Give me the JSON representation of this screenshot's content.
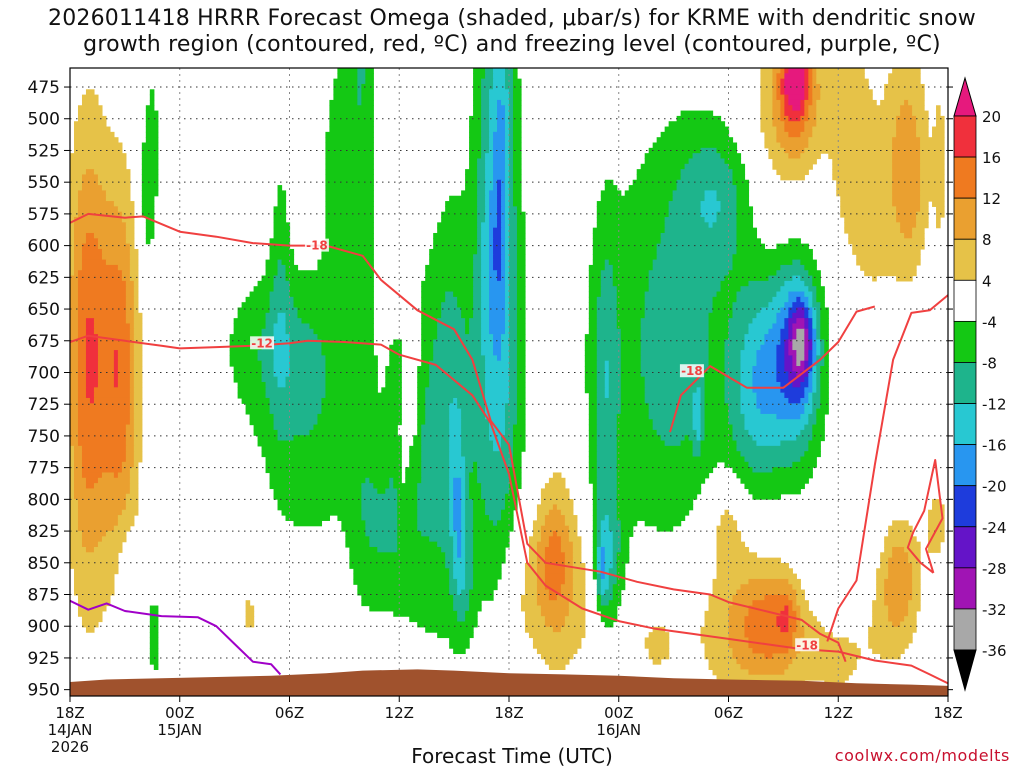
{
  "chart_data": {
    "type": "heatmap",
    "title_line1": "2026011418 HRRR Forecast Omega (shaded, μbar/s) for KRME with dendritic snow",
    "title_line2": "growth region (contoured, red, ºC) and freezing level (contoured, purple, ºC)",
    "xlabel": "Forecast Time (UTC)",
    "credit": "coolwx.com/modelts",
    "x_range_hours": [
      0,
      48
    ],
    "y_range_hpa": [
      460,
      955
    ],
    "y_ticks": [
      475,
      500,
      525,
      550,
      575,
      600,
      625,
      650,
      675,
      700,
      725,
      750,
      775,
      800,
      825,
      850,
      875,
      900,
      925,
      950
    ],
    "x_ticks": [
      {
        "hour": 0,
        "label": "18Z",
        "date": "14JAN",
        "year": "2026"
      },
      {
        "hour": 6,
        "label": "00Z",
        "date": "15JAN",
        "year": ""
      },
      {
        "hour": 12,
        "label": "06Z",
        "date": "",
        "year": ""
      },
      {
        "hour": 18,
        "label": "12Z",
        "date": "",
        "year": ""
      },
      {
        "hour": 24,
        "label": "18Z",
        "date": "",
        "year": ""
      },
      {
        "hour": 30,
        "label": "00Z",
        "date": "16JAN",
        "year": ""
      },
      {
        "hour": 36,
        "label": "06Z",
        "date": "",
        "year": ""
      },
      {
        "hour": 42,
        "label": "12Z",
        "date": "",
        "year": ""
      },
      {
        "hour": 48,
        "label": "18Z",
        "date": "",
        "year": ""
      }
    ],
    "colorbar": {
      "levels": [
        20,
        16,
        12,
        8,
        4,
        -4,
        -8,
        -12,
        -16,
        -20,
        -24,
        -28,
        -32,
        -36
      ],
      "bands": [
        {
          "from": 16,
          "to": 20,
          "color": "#f0303c"
        },
        {
          "from": 12,
          "to": 16,
          "color": "#ef7a20"
        },
        {
          "from": 8,
          "to": 12,
          "color": "#eaa030"
        },
        {
          "from": 4,
          "to": 8,
          "color": "#e6c248"
        },
        {
          "from": -4,
          "to": 4,
          "color": "#ffffff"
        },
        {
          "from": -8,
          "to": -4,
          "color": "#14c814"
        },
        {
          "from": -12,
          "to": -8,
          "color": "#1eb48c"
        },
        {
          "from": -16,
          "to": -12,
          "color": "#28c8d2"
        },
        {
          "from": -20,
          "to": -16,
          "color": "#2896f0"
        },
        {
          "from": -24,
          "to": -20,
          "color": "#1e3cdc"
        },
        {
          "from": -28,
          "to": -24,
          "color": "#6414c8"
        },
        {
          "from": -32,
          "to": -28,
          "color": "#a014b4"
        },
        {
          "from": -36,
          "to": -32,
          "color": "#a8a8a8"
        }
      ],
      "top_arrow_color": "#e6197d",
      "bottom_arrow_color": "#000000"
    },
    "colors": {
      "terrain": "#a0522d",
      "dgz_contour": "#f04040",
      "freezing_contour": "#a000c8"
    },
    "contour_labels": [
      {
        "text": "-18",
        "hour": 13.5,
        "p": 600
      },
      {
        "text": "-12",
        "hour": 10.5,
        "p": 677
      },
      {
        "text": "-18",
        "hour": 34.0,
        "p": 699
      },
      {
        "text": "-18",
        "hour": 40.3,
        "p": 915
      }
    ],
    "dgz_minus12": [
      [
        0,
        676
      ],
      [
        1,
        671
      ],
      [
        2,
        673
      ],
      [
        3,
        675
      ],
      [
        5,
        679
      ],
      [
        6,
        681
      ],
      [
        8,
        680
      ],
      [
        10,
        679
      ],
      [
        12,
        677
      ],
      [
        13,
        675
      ],
      [
        15,
        676
      ],
      [
        17,
        678
      ],
      [
        18,
        686
      ],
      [
        20,
        694
      ],
      [
        22,
        718
      ],
      [
        23,
        740
      ],
      [
        24,
        780
      ],
      [
        25,
        850
      ],
      [
        26,
        868
      ],
      [
        28,
        886
      ],
      [
        30,
        896
      ],
      [
        32,
        902
      ],
      [
        34,
        906
      ],
      [
        36,
        910
      ],
      [
        38,
        914
      ],
      [
        40,
        918
      ],
      [
        42,
        920
      ],
      [
        44,
        927
      ],
      [
        46,
        931
      ],
      [
        47,
        938
      ],
      [
        48,
        945
      ]
    ],
    "dgz_minus18": [
      [
        0,
        582
      ],
      [
        1,
        575
      ],
      [
        3,
        578
      ],
      [
        4,
        577
      ],
      [
        6,
        589
      ],
      [
        8,
        593
      ],
      [
        10,
        598
      ],
      [
        12,
        600
      ],
      [
        14,
        600
      ],
      [
        16,
        608
      ],
      [
        17,
        627
      ],
      [
        19,
        651
      ],
      [
        21,
        666
      ],
      [
        22,
        690
      ],
      [
        23,
        738
      ],
      [
        24,
        757
      ],
      [
        25,
        835
      ],
      [
        26,
        850
      ],
      [
        29,
        857
      ],
      [
        31,
        865
      ],
      [
        33,
        871
      ],
      [
        35,
        875
      ],
      [
        36,
        881
      ],
      [
        38,
        888
      ],
      [
        40,
        895
      ],
      [
        41,
        906
      ],
      [
        42,
        913
      ],
      [
        42.4,
        928
      ]
    ],
    "dgz_minus18_b": [
      [
        41.4,
        912
      ],
      [
        42,
        886
      ],
      [
        43,
        864
      ],
      [
        44,
        773
      ],
      [
        45,
        690
      ],
      [
        46,
        653
      ],
      [
        47,
        651
      ],
      [
        48,
        639
      ]
    ],
    "dgz_minus18_c": [
      [
        32.8,
        747
      ],
      [
        33.4,
        718
      ],
      [
        35,
        695
      ],
      [
        37,
        712
      ],
      [
        39,
        712
      ],
      [
        41,
        690
      ],
      [
        42,
        676
      ],
      [
        43,
        652
      ],
      [
        44,
        648
      ]
    ],
    "dgz_minus18_d": [
      [
        47.2,
        858
      ],
      [
        46.8,
        839
      ],
      [
        47.7,
        815
      ],
      [
        47.3,
        769
      ],
      [
        46.7,
        809
      ],
      [
        46.1,
        826
      ],
      [
        45.8,
        838
      ],
      [
        46.5,
        850
      ],
      [
        47.2,
        858
      ]
    ],
    "freezing_0": [
      [
        0,
        880
      ],
      [
        1,
        887
      ],
      [
        2,
        882
      ],
      [
        3,
        888
      ],
      [
        5,
        892
      ],
      [
        7,
        893
      ],
      [
        8,
        900
      ],
      [
        9,
        914
      ],
      [
        10,
        928
      ],
      [
        11,
        930
      ],
      [
        11.5,
        938
      ]
    ]
  }
}
